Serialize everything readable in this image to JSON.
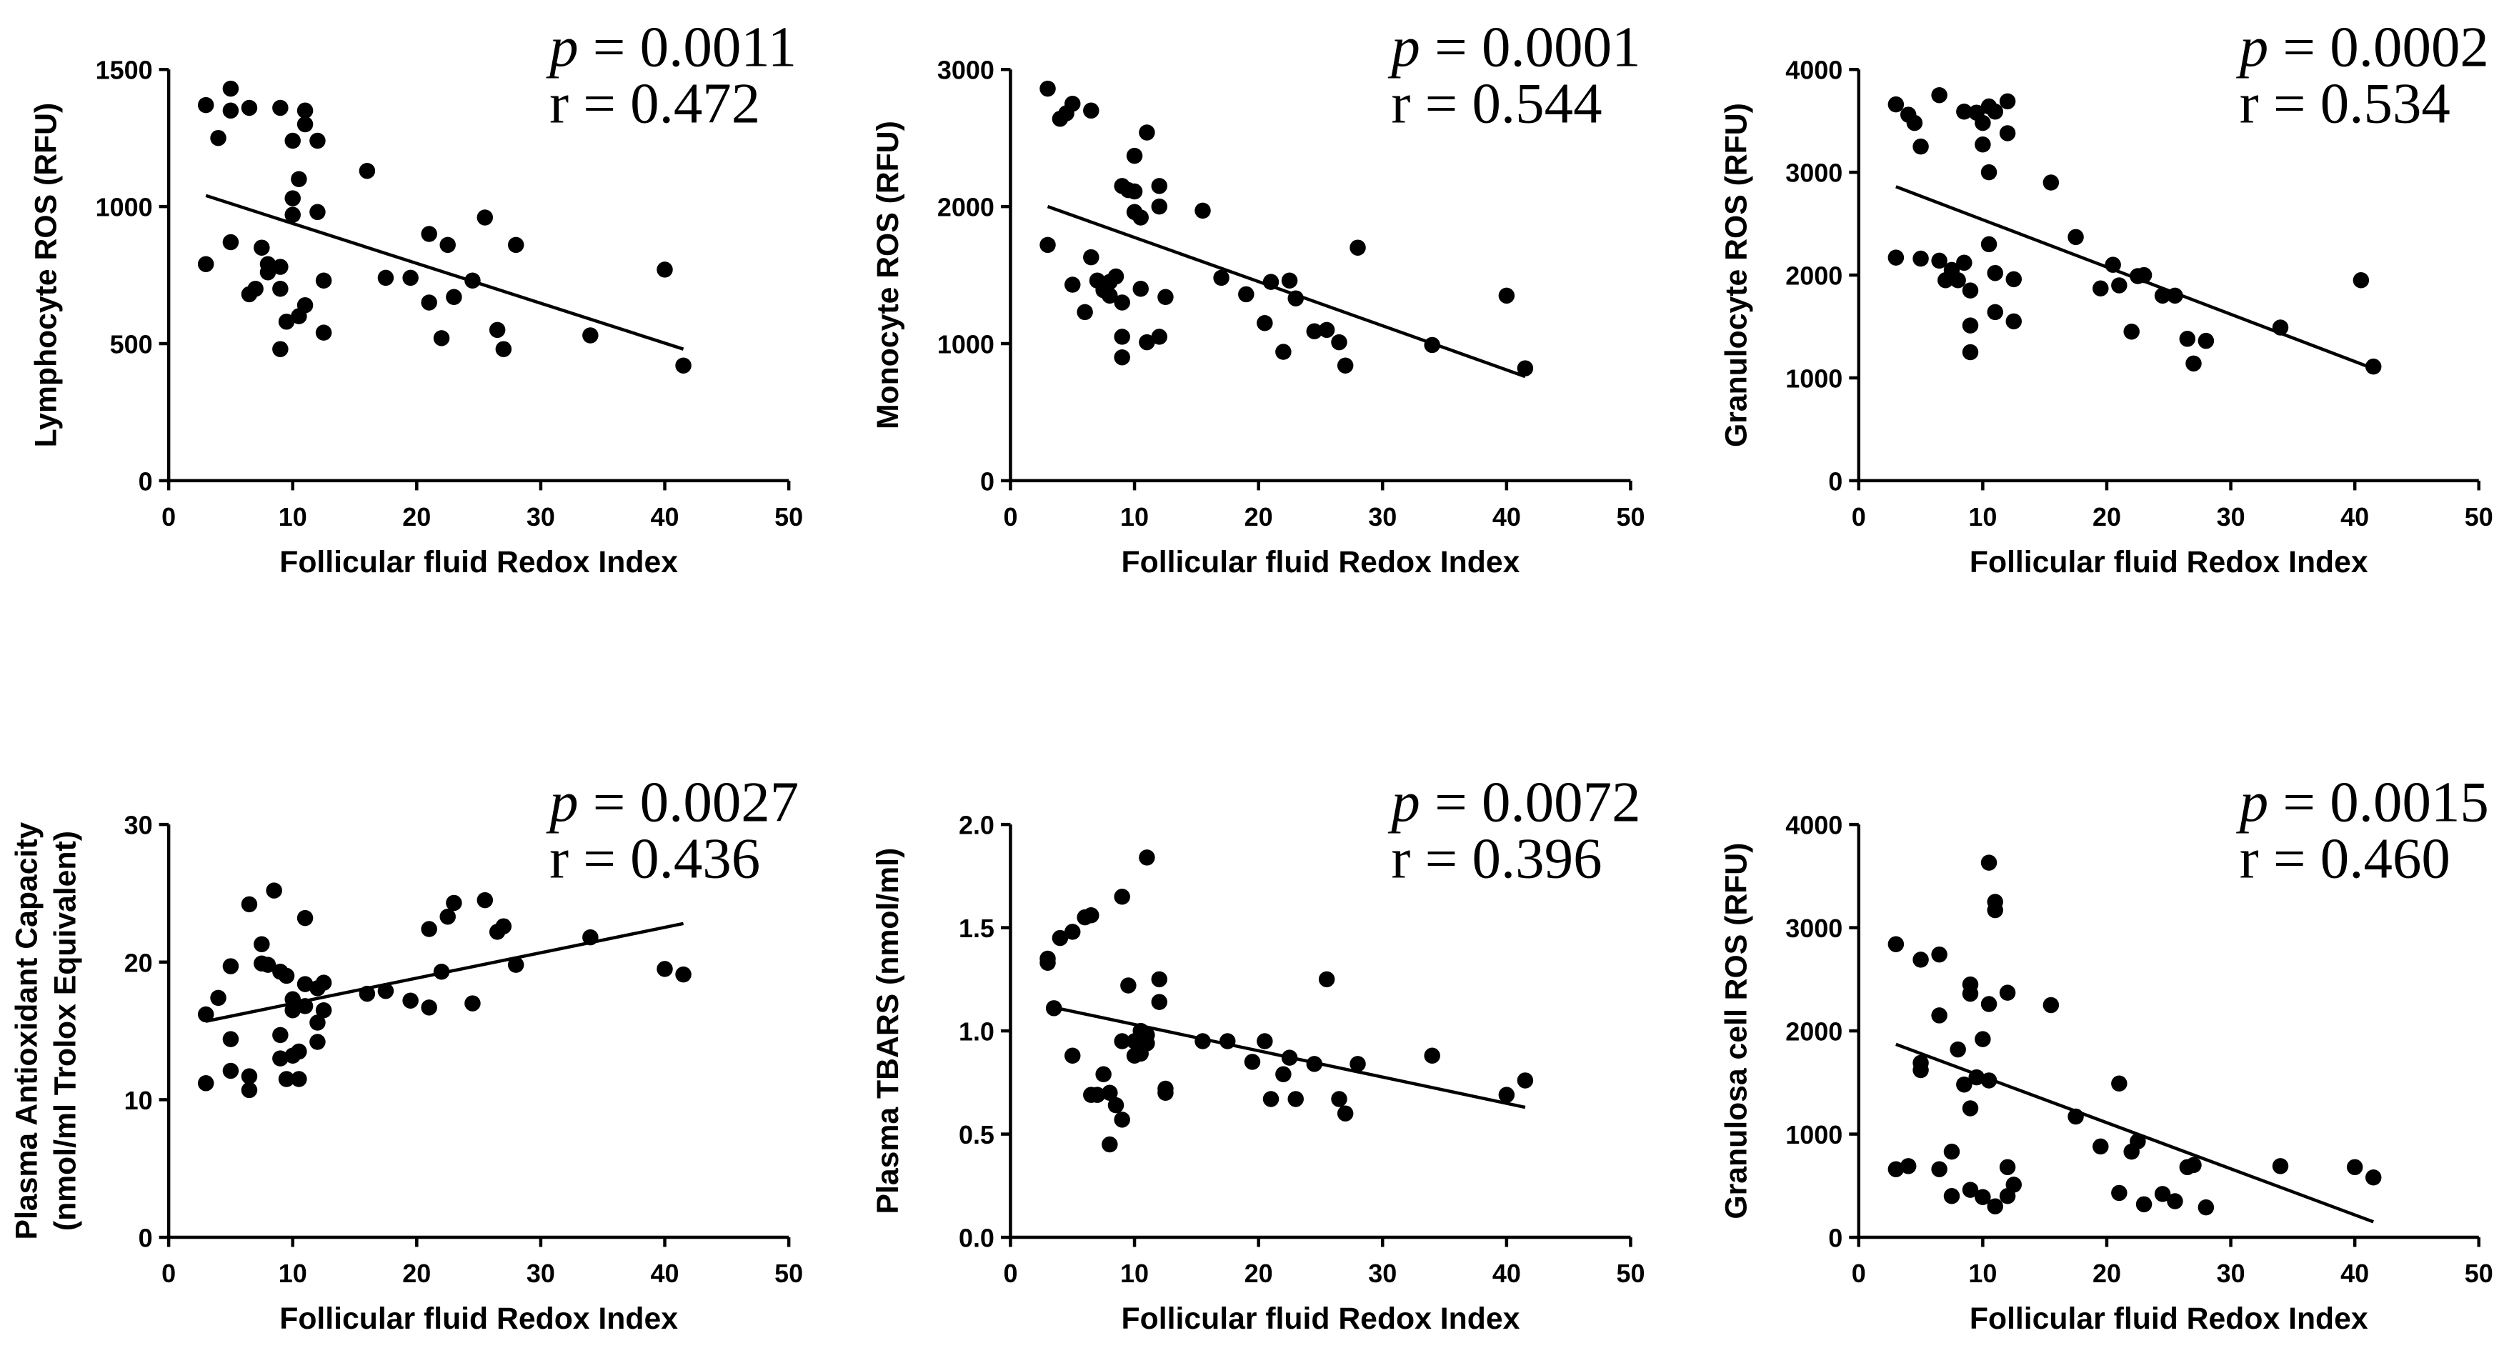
{
  "chart_data": [
    {
      "type": "scatter",
      "x_label": "Follicular fluid Redox Index",
      "y_label": [
        "Lymphocyte ROS (RFU)"
      ],
      "p_label": "p",
      "p_value": "= 0.0011",
      "r_text": "r = 0.472",
      "color": "#000000",
      "xlim": [
        0,
        50
      ],
      "xticks": [
        0,
        10,
        20,
        30,
        40,
        50
      ],
      "ylim": [
        0,
        1500
      ],
      "yticks": [
        0,
        500,
        1000,
        1500
      ],
      "x": [
        3,
        3,
        4,
        5,
        5,
        5,
        6.5,
        6.5,
        7,
        7.5,
        8,
        8,
        9,
        9,
        9,
        9,
        9.5,
        10,
        10,
        10,
        10.5,
        10.5,
        11,
        11,
        11,
        12,
        12,
        12.5,
        12.5,
        16,
        17.5,
        19.5,
        21,
        21,
        22,
        22.5,
        23,
        24.5,
        25.5,
        26.5,
        27,
        28,
        34,
        40,
        41.5
      ],
      "y": [
        1370,
        790,
        1250,
        1430,
        870,
        1350,
        1360,
        680,
        700,
        850,
        790,
        760,
        780,
        1360,
        700,
        480,
        580,
        1030,
        970,
        1240,
        1100,
        600,
        1350,
        1300,
        640,
        1240,
        980,
        540,
        730,
        1130,
        740,
        740,
        650,
        900,
        520,
        860,
        670,
        730,
        960,
        550,
        480,
        860,
        530,
        770,
        420
      ],
      "fit": {
        "x": [
          3,
          41.5
        ],
        "y": [
          1040,
          480
        ]
      }
    },
    {
      "type": "scatter",
      "x_label": "Follicular fluid Redox Index",
      "y_label": [
        "Monocyte ROS (RFU)"
      ],
      "p_label": "p",
      "p_value": "= 0.0001",
      "r_text": "r = 0.544",
      "color": "#000000",
      "xlim": [
        0,
        50
      ],
      "xticks": [
        0,
        10,
        20,
        30,
        40,
        50
      ],
      "ylim": [
        0,
        3000
      ],
      "yticks": [
        0,
        1000,
        2000,
        3000
      ],
      "x": [
        3,
        3,
        4,
        4.5,
        5,
        5,
        6,
        6.5,
        6.5,
        7,
        7.5,
        8,
        8,
        8.5,
        9,
        9,
        9,
        9,
        9.5,
        10,
        10,
        10,
        10.5,
        10.5,
        11,
        11,
        12,
        12,
        12,
        12.5,
        15.5,
        17,
        19,
        20.5,
        21,
        22,
        22.5,
        23,
        24.5,
        25.5,
        26.5,
        27,
        28,
        34,
        40,
        41.5
      ],
      "y": [
        2860,
        1720,
        2640,
        2680,
        2750,
        1430,
        1230,
        2700,
        1630,
        1460,
        1390,
        1450,
        1350,
        1490,
        2150,
        1300,
        1050,
        900,
        2120,
        2370,
        2110,
        1960,
        1920,
        1400,
        2540,
        1010,
        2150,
        2000,
        1050,
        1340,
        1970,
        1480,
        1360,
        1150,
        1450,
        940,
        1460,
        1330,
        1090,
        1100,
        1010,
        840,
        1700,
        990,
        1350,
        820
      ],
      "fit": {
        "x": [
          3,
          41.5
        ],
        "y": [
          2000,
          760
        ]
      }
    },
    {
      "type": "scatter",
      "x_label": "Follicular fluid Redox Index",
      "y_label": [
        "Granulocyte ROS (RFU)"
      ],
      "p_label": "p",
      "p_value": "= 0.0002",
      "r_text": "r = 0.534",
      "color": "#000000",
      "xlim": [
        0,
        50
      ],
      "xticks": [
        0,
        10,
        20,
        30,
        40,
        50
      ],
      "ylim": [
        0,
        4000
      ],
      "yticks": [
        0,
        1000,
        2000,
        3000,
        4000
      ],
      "x": [
        3,
        3,
        4,
        4.5,
        5,
        5,
        6.5,
        6.5,
        7,
        7.5,
        8,
        8.5,
        8.5,
        9,
        9,
        9,
        9.5,
        10,
        10,
        10.5,
        10.5,
        10.5,
        11,
        11,
        11,
        12,
        12,
        12.5,
        12.5,
        15.5,
        17.5,
        19.5,
        20.5,
        21,
        22,
        22.5,
        23,
        24.5,
        25.5,
        26.5,
        27,
        28,
        34,
        40.5,
        41.5
      ],
      "y": [
        3660,
        2170,
        3560,
        3480,
        3250,
        2160,
        3750,
        2140,
        1950,
        2050,
        1950,
        2120,
        3590,
        1850,
        1510,
        1250,
        3580,
        3270,
        3480,
        3000,
        2300,
        3640,
        3590,
        2020,
        1640,
        3690,
        3380,
        1960,
        1550,
        2900,
        2370,
        1870,
        2100,
        1900,
        1450,
        1990,
        2000,
        1800,
        1800,
        1380,
        1140,
        1360,
        1490,
        1950,
        1110
      ],
      "fit": {
        "x": [
          3,
          41.5
        ],
        "y": [
          2860,
          1090
        ]
      }
    },
    {
      "type": "scatter",
      "x_label": "Follicular fluid Redox Index",
      "y_label": [
        "Plasma Antioxidant Capacity",
        "(nmol/ml Trolox Equivalent)"
      ],
      "p_label": "p",
      "p_value": "= 0.0027",
      "r_text": "r = 0.436",
      "color": "#000000",
      "xlim": [
        0,
        50
      ],
      "xticks": [
        0,
        10,
        20,
        30,
        40,
        50
      ],
      "ylim": [
        0,
        30
      ],
      "yticks": [
        0,
        10,
        20,
        30
      ],
      "x": [
        3,
        3,
        4,
        5,
        5,
        5,
        6.5,
        6.5,
        6.5,
        7.5,
        7.5,
        8,
        8.5,
        9,
        9,
        9,
        9.5,
        9.5,
        10,
        10,
        10,
        10.5,
        10.5,
        11,
        11,
        11,
        12,
        12,
        12,
        12.5,
        12.5,
        16,
        17.5,
        19.5,
        21,
        21,
        22,
        22.5,
        23,
        24.5,
        25.5,
        26.5,
        27,
        28,
        34,
        40,
        41.5
      ],
      "y": [
        16.2,
        11.2,
        17.4,
        19.7,
        12.1,
        14.4,
        24.2,
        11.7,
        10.7,
        21.3,
        19.9,
        19.8,
        25.2,
        19.3,
        14.7,
        13.0,
        19.0,
        11.5,
        13.2,
        16.5,
        17.3,
        13.5,
        11.5,
        23.2,
        18.4,
        16.8,
        18.1,
        15.6,
        14.2,
        18.5,
        16.5,
        17.7,
        17.9,
        17.2,
        22.4,
        16.7,
        19.3,
        23.3,
        24.3,
        17.0,
        24.5,
        22.2,
        22.6,
        19.8,
        21.8,
        19.5,
        19.1
      ],
      "fit": {
        "x": [
          3,
          41.5
        ],
        "y": [
          15.7,
          22.8
        ]
      }
    },
    {
      "type": "scatter",
      "x_label": "Follicular fluid Redox Index",
      "y_label": [
        "Plasma TBARS (nmol/ml)"
      ],
      "p_label": "p",
      "p_value": "= 0.0072",
      "r_text": "r = 0.396",
      "color": "#000000",
      "xlim": [
        0,
        50
      ],
      "xticks": [
        0,
        10,
        20,
        30,
        40,
        50
      ],
      "ylim": [
        0,
        2
      ],
      "yticks": [
        {
          "value": 0,
          "label": "0.0"
        },
        0.5,
        {
          "value": 1,
          "label": "1.0"
        },
        1.5,
        {
          "value": 2,
          "label": "2.0"
        }
      ],
      "x": [
        3,
        3,
        3.5,
        4,
        5,
        5,
        6,
        6.5,
        6.5,
        7,
        7.5,
        8,
        8,
        8.5,
        9,
        9,
        9,
        9.5,
        10,
        10,
        10.5,
        10.5,
        11,
        11,
        11,
        12,
        12,
        12.5,
        12.5,
        15.5,
        17.5,
        19.5,
        20.5,
        21,
        22,
        22.5,
        23,
        24.5,
        25.5,
        26.5,
        27,
        28,
        34,
        40,
        41.5
      ],
      "y": [
        1.35,
        1.33,
        1.11,
        1.45,
        1.48,
        0.88,
        1.55,
        1.56,
        0.69,
        0.69,
        0.79,
        0.7,
        0.45,
        0.64,
        1.65,
        0.57,
        0.95,
        1.22,
        0.95,
        0.88,
        0.89,
        1.0,
        1.84,
        0.98,
        0.94,
        1.25,
        1.14,
        0.7,
        0.72,
        0.95,
        0.95,
        0.85,
        0.95,
        0.67,
        0.79,
        0.87,
        0.67,
        0.84,
        1.25,
        0.67,
        0.6,
        0.84,
        0.88,
        0.69,
        0.76
      ],
      "fit": {
        "x": [
          3,
          41.5
        ],
        "y": [
          1.12,
          0.63
        ]
      }
    },
    {
      "type": "scatter",
      "x_label": "Follicular fluid Redox Index",
      "y_label": [
        "Granulosa cell ROS (RFU)"
      ],
      "p_label": "p",
      "p_value": "= 0.0015",
      "r_text": "r = 0.460",
      "color": "#000000",
      "xlim": [
        0,
        50
      ],
      "xticks": [
        0,
        10,
        20,
        30,
        40,
        50
      ],
      "ylim": [
        0,
        4000
      ],
      "yticks": [
        0,
        1000,
        2000,
        3000,
        4000
      ],
      "x": [
        3,
        3,
        4,
        5,
        5,
        5,
        6.5,
        6.5,
        6.5,
        7.5,
        7.5,
        8,
        8.5,
        9,
        9,
        9,
        9,
        9.5,
        10,
        10,
        10.5,
        10.5,
        10.5,
        11,
        11,
        11,
        12,
        12,
        12,
        12.5,
        15.5,
        17.5,
        19.5,
        21,
        21,
        22,
        22.5,
        23,
        24.5,
        25.5,
        26.5,
        27,
        28,
        34,
        40,
        41.5
      ],
      "y": [
        660,
        2840,
        690,
        2690,
        1690,
        1620,
        2150,
        2740,
        660,
        830,
        400,
        1820,
        1480,
        2450,
        2360,
        1250,
        460,
        1550,
        1920,
        390,
        3630,
        1520,
        2260,
        3250,
        3170,
        300,
        2370,
        680,
        400,
        510,
        2250,
        1170,
        880,
        1490,
        430,
        830,
        930,
        320,
        420,
        350,
        680,
        700,
        290,
        690,
        680,
        580
      ],
      "fit": {
        "x": [
          3,
          41.5
        ],
        "y": [
          1870,
          150
        ]
      }
    }
  ]
}
